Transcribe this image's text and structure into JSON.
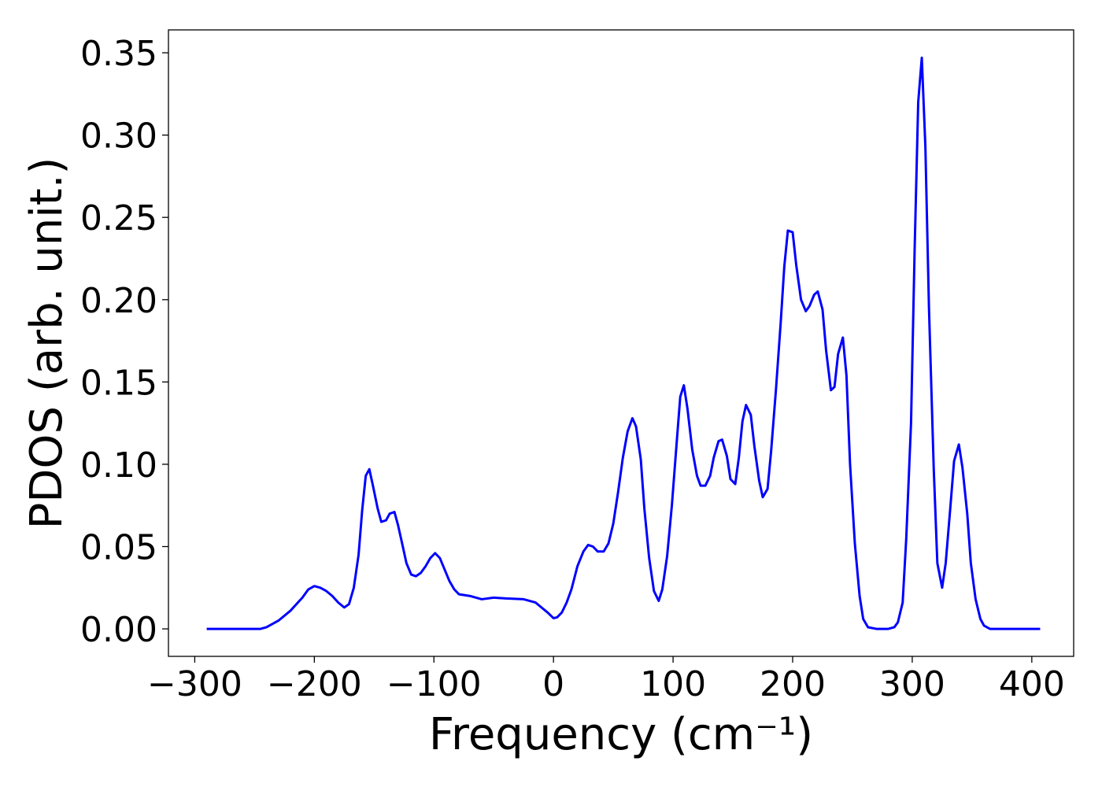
{
  "chart_data": {
    "type": "line",
    "xlabel": "Frequency (cm⁻¹)",
    "ylabel": "PDOS (arb. unit.)",
    "xlim": [
      -322,
      435
    ],
    "ylim": [
      -0.0167,
      0.3639
    ],
    "xticks": [
      {
        "value": -300,
        "label": "−300"
      },
      {
        "value": -200,
        "label": "−200"
      },
      {
        "value": -100,
        "label": "−100"
      },
      0,
      100,
      200,
      300,
      400
    ],
    "yticks": [
      {
        "value": 0,
        "label": "0.00"
      },
      {
        "value": 0.05,
        "label": "0.05"
      },
      {
        "value": 0.1,
        "label": "0.10"
      },
      {
        "value": 0.15,
        "label": "0.15"
      },
      {
        "value": 0.2,
        "label": "0.20"
      },
      {
        "value": 0.25,
        "label": "0.25"
      },
      {
        "value": 0.3,
        "label": "0.30"
      },
      {
        "value": 0.35,
        "label": "0.35"
      }
    ],
    "grid": false,
    "series": [
      {
        "color": "#0000ff",
        "x": [
          -290,
          -245,
          -240,
          -230,
          -220,
          -210,
          -205,
          -200,
          -195,
          -190,
          -185,
          -180,
          -175,
          -171,
          -167,
          -163,
          -160,
          -157,
          -154,
          -151,
          -147,
          -144,
          -140,
          -137,
          -133,
          -130,
          -126,
          -123,
          -119,
          -115,
          -111,
          -107,
          -103,
          -99,
          -95,
          -91,
          -87,
          -83,
          -79,
          -70,
          -60,
          -50,
          -40,
          -25,
          -15,
          -5,
          0,
          3,
          7,
          11,
          15,
          20,
          25,
          29,
          33,
          37,
          42,
          46,
          50,
          54,
          58,
          62,
          66,
          69,
          73,
          76,
          80,
          84,
          88,
          91,
          95,
          99,
          103,
          106,
          109,
          112,
          116,
          120,
          123,
          127,
          131,
          134,
          138,
          141,
          145,
          148,
          152,
          155,
          158,
          161,
          165,
          168,
          172,
          175,
          179,
          182,
          186,
          190,
          193,
          196,
          200,
          203,
          207,
          211,
          214,
          218,
          221,
          225,
          228,
          232,
          235,
          238,
          242,
          245,
          248,
          252,
          256,
          259,
          263,
          270,
          280,
          285,
          288,
          292,
          295,
          299,
          302,
          305,
          308,
          311,
          314,
          318,
          321,
          325,
          328,
          332,
          335,
          339,
          342,
          346,
          349,
          353,
          357,
          360,
          365,
          380,
          407
        ],
        "values": [
          0,
          0,
          0.001,
          0.005,
          0.011,
          0.019,
          0.024,
          0.026,
          0.025,
          0.023,
          0.02,
          0.016,
          0.013,
          0.015,
          0.025,
          0.045,
          0.072,
          0.093,
          0.097,
          0.087,
          0.073,
          0.065,
          0.066,
          0.07,
          0.071,
          0.063,
          0.05,
          0.04,
          0.033,
          0.032,
          0.034,
          0.038,
          0.043,
          0.046,
          0.043,
          0.036,
          0.029,
          0.024,
          0.021,
          0.02,
          0.018,
          0.019,
          0.0185,
          0.018,
          0.016,
          0.01,
          0.0065,
          0.007,
          0.01,
          0.016,
          0.024,
          0.038,
          0.047,
          0.051,
          0.05,
          0.047,
          0.047,
          0.052,
          0.064,
          0.083,
          0.104,
          0.12,
          0.128,
          0.123,
          0.103,
          0.073,
          0.043,
          0.023,
          0.017,
          0.024,
          0.044,
          0.075,
          0.113,
          0.141,
          0.148,
          0.134,
          0.109,
          0.093,
          0.087,
          0.087,
          0.093,
          0.104,
          0.114,
          0.115,
          0.105,
          0.091,
          0.088,
          0.104,
          0.126,
          0.136,
          0.13,
          0.111,
          0.09,
          0.08,
          0.085,
          0.108,
          0.145,
          0.186,
          0.22,
          0.242,
          0.241,
          0.221,
          0.2,
          0.193,
          0.196,
          0.203,
          0.205,
          0.194,
          0.169,
          0.145,
          0.147,
          0.167,
          0.177,
          0.154,
          0.1,
          0.052,
          0.02,
          0.006,
          0.001,
          0,
          0,
          0.001,
          0.004,
          0.016,
          0.055,
          0.125,
          0.23,
          0.32,
          0.347,
          0.293,
          0.195,
          0.097,
          0.04,
          0.025,
          0.04,
          0.075,
          0.102,
          0.112,
          0.098,
          0.07,
          0.04,
          0.018,
          0.006,
          0.002,
          0,
          0,
          0
        ]
      }
    ]
  }
}
